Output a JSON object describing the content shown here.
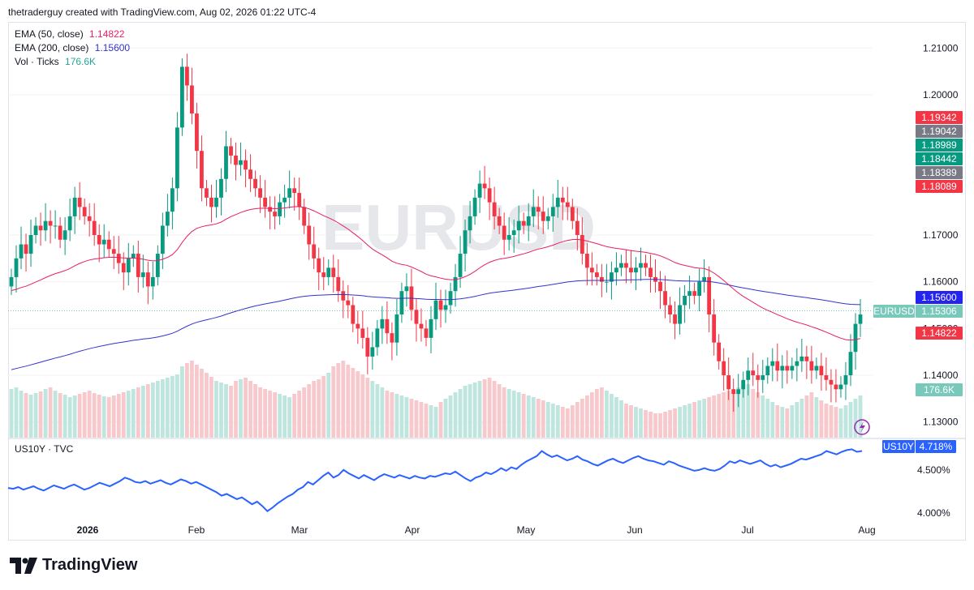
{
  "header": {
    "attribution": "thetraderguy created with TradingView.com, Aug 02, 2026 01:22 UTC-4"
  },
  "legend": {
    "ema50": {
      "label": "EMA (50, close)",
      "value": "1.14822",
      "color": "#e91e63"
    },
    "ema200": {
      "label": "EMA (200, close)",
      "value": "1.15600",
      "color": "#3333cc"
    },
    "vol": {
      "label": "Vol · Ticks",
      "value": "176.6K",
      "color": "#26a69a"
    }
  },
  "watermark": "EURUSD",
  "price_labels": [
    {
      "text": "1.19342",
      "color": "#f23645"
    },
    {
      "text": "1.19042",
      "color": "#787b86"
    },
    {
      "text": "1.18989",
      "color": "#089981"
    },
    {
      "text": "1.18442",
      "color": "#089981"
    },
    {
      "text": "1.18389",
      "color": "#787b86"
    },
    {
      "text": "1.18089",
      "color": "#f23645"
    },
    {
      "text": "1.15600",
      "color": "#2424ee"
    },
    {
      "text": "1.15306",
      "color": "#78c9bb",
      "tag": "EURUSD"
    },
    {
      "text": "1.14822",
      "color": "#f23645"
    },
    {
      "text": "176.6K",
      "color": "#78c9bb"
    }
  ],
  "lower_pane": {
    "label": "US10Y · TVC",
    "tag": "US10Y",
    "value": "4.718%",
    "color": "#2962ff"
  },
  "logo": "TradingView",
  "chart_data": [
    {
      "type": "candlestick",
      "symbol": "EURUSD",
      "title": "",
      "x_tick_labels": [
        "2026",
        "Feb",
        "Mar",
        "Apr",
        "May",
        "Jun",
        "Jul",
        "Aug"
      ],
      "y_ticks": [
        "1.21000",
        "1.20000",
        "1.17000",
        "1.16000",
        "1.15000",
        "1.14000",
        "1.13000"
      ],
      "ylim": [
        1.127,
        1.213
      ],
      "last_price": 1.15306,
      "ema50_last": 1.14822,
      "ema200_last": 1.156,
      "closes": [
        1.161,
        1.165,
        1.168,
        1.166,
        1.17,
        1.172,
        1.171,
        1.173,
        1.172,
        1.172,
        1.169,
        1.171,
        1.174,
        1.178,
        1.176,
        1.174,
        1.173,
        1.17,
        1.168,
        1.169,
        1.167,
        1.166,
        1.164,
        1.162,
        1.165,
        1.166,
        1.161,
        1.162,
        1.159,
        1.161,
        1.166,
        1.172,
        1.175,
        1.18,
        1.193,
        1.206,
        1.202,
        1.196,
        1.188,
        1.18,
        1.178,
        1.176,
        1.178,
        1.182,
        1.189,
        1.187,
        1.185,
        1.186,
        1.184,
        1.182,
        1.18,
        1.178,
        1.176,
        1.175,
        1.174,
        1.177,
        1.178,
        1.18,
        1.179,
        1.176,
        1.172,
        1.168,
        1.165,
        1.162,
        1.161,
        1.163,
        1.161,
        1.158,
        1.156,
        1.155,
        1.151,
        1.15,
        1.148,
        1.144,
        1.146,
        1.15,
        1.152,
        1.149,
        1.147,
        1.153,
        1.158,
        1.159,
        1.154,
        1.151,
        1.15,
        1.148,
        1.152,
        1.156,
        1.154,
        1.155,
        1.158,
        1.161,
        1.166,
        1.171,
        1.174,
        1.178,
        1.181,
        1.18,
        1.177,
        1.174,
        1.172,
        1.169,
        1.17,
        1.171,
        1.173,
        1.172,
        1.174,
        1.176,
        1.175,
        1.173,
        1.174,
        1.176,
        1.178,
        1.177,
        1.176,
        1.173,
        1.17,
        1.166,
        1.163,
        1.162,
        1.161,
        1.16,
        1.16,
        1.162,
        1.163,
        1.164,
        1.163,
        1.162,
        1.163,
        1.164,
        1.163,
        1.161,
        1.16,
        1.158,
        1.155,
        1.153,
        1.151,
        1.155,
        1.157,
        1.158,
        1.157,
        1.16,
        1.161,
        1.153,
        1.147,
        1.143,
        1.14,
        1.137,
        1.136,
        1.137,
        1.139,
        1.141,
        1.14,
        1.139,
        1.14,
        1.142,
        1.143,
        1.141,
        1.142,
        1.141,
        1.142,
        1.143,
        1.144,
        1.143,
        1.141,
        1.142,
        1.14,
        1.139,
        1.138,
        1.137,
        1.138,
        1.14,
        1.145,
        1.151,
        1.153
      ]
    },
    {
      "type": "bar",
      "name": "Vol · Ticks",
      "last_value": "176.6K",
      "values": [
        60,
        62,
        58,
        55,
        53,
        55,
        57,
        60,
        62,
        58,
        55,
        53,
        50,
        52,
        54,
        56,
        58,
        55,
        53,
        51,
        50,
        52,
        54,
        56,
        58,
        60,
        62,
        64,
        66,
        68,
        70,
        72,
        74,
        76,
        78,
        88,
        92,
        95,
        90,
        85,
        80,
        75,
        70,
        68,
        66,
        64,
        70,
        72,
        74,
        70,
        66,
        62,
        60,
        58,
        56,
        54,
        52,
        50,
        54,
        58,
        62,
        66,
        70,
        72,
        76,
        80,
        88,
        92,
        95,
        90,
        86,
        82,
        78,
        74,
        70,
        66,
        62,
        58,
        56,
        54,
        52,
        50,
        48,
        46,
        44,
        42,
        40,
        38,
        44,
        48,
        52,
        56,
        60,
        64,
        66,
        68,
        70,
        72,
        74,
        70,
        66,
        62,
        60,
        58,
        56,
        54,
        52,
        50,
        48,
        46,
        44,
        42,
        40,
        38,
        36,
        40,
        44,
        48,
        52,
        56,
        60,
        62,
        58,
        54,
        50,
        46,
        42,
        40,
        38,
        36,
        34,
        32,
        30,
        30,
        32,
        34,
        36,
        38,
        40,
        42,
        44,
        46,
        48,
        50,
        52,
        54,
        56,
        58,
        60,
        62,
        64,
        66,
        60,
        56,
        52,
        48,
        44,
        40,
        38,
        36,
        40,
        44,
        48,
        52,
        56,
        50,
        46,
        42,
        40,
        38,
        36,
        40,
        44,
        48,
        52,
        56,
        60,
        64
      ]
    },
    {
      "type": "line",
      "name": "US10Y",
      "y_ticks": [
        "4.500%",
        "4.000%"
      ],
      "ylim": [
        3.97,
        4.8
      ],
      "last_value": 4.718,
      "values": [
        4.29,
        4.28,
        4.3,
        4.27,
        4.29,
        4.31,
        4.28,
        4.26,
        4.29,
        4.32,
        4.3,
        4.28,
        4.31,
        4.33,
        4.3,
        4.27,
        4.29,
        4.32,
        4.35,
        4.33,
        4.31,
        4.34,
        4.37,
        4.41,
        4.39,
        4.36,
        4.35,
        4.37,
        4.34,
        4.36,
        4.38,
        4.35,
        4.33,
        4.36,
        4.39,
        4.37,
        4.34,
        4.36,
        4.33,
        4.3,
        4.27,
        4.24,
        4.2,
        4.22,
        4.19,
        4.16,
        4.18,
        4.14,
        4.1,
        4.13,
        4.08,
        4.02,
        4.06,
        4.11,
        4.15,
        4.19,
        4.22,
        4.27,
        4.3,
        4.36,
        4.33,
        4.38,
        4.43,
        4.47,
        4.41,
        4.44,
        4.5,
        4.46,
        4.43,
        4.4,
        4.44,
        4.41,
        4.38,
        4.42,
        4.45,
        4.43,
        4.41,
        4.44,
        4.42,
        4.4,
        4.43,
        4.41,
        4.4,
        4.43,
        4.42,
        4.44,
        4.46,
        4.45,
        4.48,
        4.44,
        4.4,
        4.37,
        4.41,
        4.43,
        4.47,
        4.45,
        4.48,
        4.52,
        4.49,
        4.53,
        4.51,
        4.56,
        4.6,
        4.63,
        4.66,
        4.72,
        4.68,
        4.65,
        4.67,
        4.64,
        4.61,
        4.63,
        4.66,
        4.62,
        4.6,
        4.57,
        4.55,
        4.58,
        4.61,
        4.63,
        4.6,
        4.58,
        4.61,
        4.64,
        4.66,
        4.63,
        4.61,
        4.6,
        4.58,
        4.56,
        4.6,
        4.58,
        4.55,
        4.53,
        4.51,
        4.49,
        4.5,
        4.52,
        4.5,
        4.49,
        4.51,
        4.55,
        4.6,
        4.58,
        4.61,
        4.59,
        4.57,
        4.59,
        4.61,
        4.57,
        4.54,
        4.56,
        4.53,
        4.55,
        4.57,
        4.6,
        4.63,
        4.62,
        4.64,
        4.66,
        4.68,
        4.72,
        4.7,
        4.68,
        4.71,
        4.73,
        4.74,
        4.71,
        4.72
      ]
    }
  ]
}
